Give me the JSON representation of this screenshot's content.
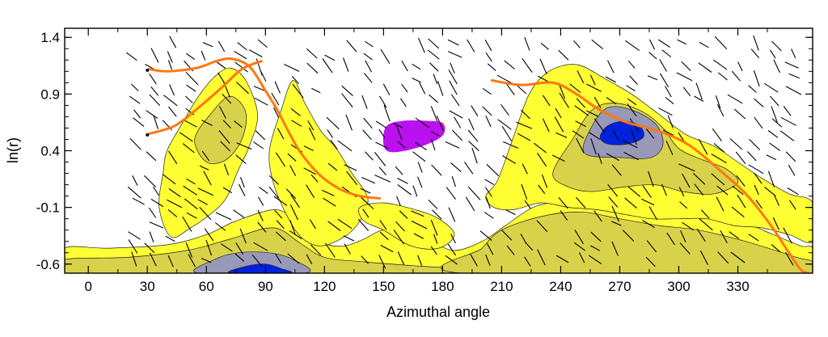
{
  "chart_data": {
    "type": "contour",
    "title": "",
    "xlabel": "Azimuthal angle",
    "ylabel": "ln(r)",
    "xlim": [
      -12,
      368
    ],
    "ylim": [
      -0.68,
      1.48
    ],
    "xticks": [
      0,
      30,
      60,
      90,
      120,
      150,
      180,
      210,
      240,
      270,
      300,
      330
    ],
    "xtick_labels": [
      "0",
      "30",
      "60",
      "90",
      "120",
      "150",
      "180",
      "210",
      "240",
      "270",
      "300",
      "330"
    ],
    "yticks": [
      1.4,
      0.9,
      0.4,
      -0.1,
      -0.6
    ],
    "ytick_labels": [
      "1.4",
      "0.9",
      "0.4",
      "-0.1",
      "-0.6"
    ],
    "grid": false,
    "legend": "none",
    "contour_levels": [
      {
        "name": "level-1",
        "color": "#ffff33"
      },
      {
        "name": "level-2",
        "color": "#d8d24a"
      },
      {
        "name": "level-3",
        "color": "#9898b8"
      },
      {
        "name": "level-4",
        "color": "#0022dd"
      }
    ],
    "contour_regions": [
      {
        "level": 1,
        "points": [
          [
            -12,
            -0.46
          ],
          [
            10,
            -0.46
          ],
          [
            40,
            -0.43
          ],
          [
            60,
            -0.34
          ],
          [
            75,
            -0.22
          ],
          [
            95,
            -0.12
          ],
          [
            105,
            -0.22
          ],
          [
            112,
            -0.32
          ],
          [
            120,
            -0.42
          ],
          [
            130,
            -0.44
          ],
          [
            140,
            -0.38
          ],
          [
            150,
            -0.3
          ],
          [
            162,
            -0.34
          ],
          [
            174,
            -0.4
          ],
          [
            186,
            -0.48
          ],
          [
            200,
            -0.4
          ],
          [
            212,
            -0.26
          ],
          [
            226,
            -0.1
          ],
          [
            240,
            -0.05
          ],
          [
            254,
            -0.08
          ],
          [
            268,
            -0.12
          ],
          [
            282,
            -0.18
          ],
          [
            296,
            -0.14
          ],
          [
            308,
            -0.12
          ],
          [
            320,
            -0.18
          ],
          [
            334,
            -0.24
          ],
          [
            348,
            -0.34
          ],
          [
            362,
            -0.44
          ],
          [
            368,
            -0.46
          ],
          [
            368,
            -0.68
          ],
          [
            -12,
            -0.68
          ]
        ]
      },
      {
        "level": 1,
        "points": [
          [
            40,
            0.4
          ],
          [
            48,
            0.65
          ],
          [
            56,
            0.88
          ],
          [
            64,
            1.05
          ],
          [
            72,
            1.13
          ],
          [
            80,
            1.02
          ],
          [
            86,
            0.72
          ],
          [
            82,
            0.45
          ],
          [
            76,
            0.22
          ],
          [
            70,
            -0.02
          ],
          [
            62,
            -0.16
          ],
          [
            52,
            -0.28
          ],
          [
            42,
            -0.36
          ],
          [
            36,
            -0.1
          ],
          [
            38,
            0.2
          ]
        ]
      },
      {
        "level": 1,
        "points": [
          [
            92,
            0.4
          ],
          [
            98,
            0.76
          ],
          [
            104,
            1.02
          ],
          [
            110,
            0.82
          ],
          [
            118,
            0.58
          ],
          [
            126,
            0.42
          ],
          [
            134,
            0.2
          ],
          [
            142,
            -0.02
          ],
          [
            138,
            -0.22
          ],
          [
            130,
            -0.36
          ],
          [
            118,
            -0.44
          ],
          [
            108,
            -0.36
          ],
          [
            100,
            -0.14
          ],
          [
            94,
            0.12
          ]
        ]
      },
      {
        "level": 1,
        "points": [
          [
            138,
            -0.1
          ],
          [
            150,
            -0.06
          ],
          [
            166,
            -0.12
          ],
          [
            178,
            -0.2
          ],
          [
            186,
            -0.34
          ],
          [
            178,
            -0.46
          ],
          [
            164,
            -0.44
          ],
          [
            150,
            -0.3
          ],
          [
            140,
            -0.22
          ]
        ]
      },
      {
        "level": 1,
        "points": [
          [
            208,
            0.14
          ],
          [
            216,
            0.52
          ],
          [
            224,
            0.9
          ],
          [
            234,
            1.1
          ],
          [
            248,
            1.16
          ],
          [
            262,
            1.04
          ],
          [
            276,
            0.9
          ],
          [
            290,
            0.72
          ],
          [
            304,
            0.54
          ],
          [
            318,
            0.44
          ],
          [
            330,
            0.3
          ],
          [
            342,
            0.16
          ],
          [
            356,
            0.02
          ],
          [
            368,
            -0.06
          ],
          [
            368,
            -0.4
          ],
          [
            356,
            -0.34
          ],
          [
            342,
            -0.28
          ],
          [
            328,
            -0.26
          ],
          [
            314,
            -0.2
          ],
          [
            300,
            -0.2
          ],
          [
            286,
            -0.2
          ],
          [
            272,
            -0.16
          ],
          [
            258,
            -0.12
          ],
          [
            244,
            -0.1
          ],
          [
            230,
            -0.06
          ],
          [
            216,
            -0.12
          ],
          [
            206,
            -0.1
          ],
          [
            202,
            0.0
          ]
        ]
      },
      {
        "level": 2,
        "points": [
          [
            -12,
            -0.56
          ],
          [
            20,
            -0.54
          ],
          [
            50,
            -0.48
          ],
          [
            72,
            -0.38
          ],
          [
            94,
            -0.28
          ],
          [
            108,
            -0.42
          ],
          [
            120,
            -0.54
          ],
          [
            140,
            -0.58
          ],
          [
            170,
            -0.62
          ],
          [
            190,
            -0.64
          ],
          [
            190,
            -0.68
          ],
          [
            -12,
            -0.68
          ]
        ]
      },
      {
        "level": 2,
        "points": [
          [
            210,
            -0.3
          ],
          [
            230,
            -0.18
          ],
          [
            250,
            -0.14
          ],
          [
            270,
            -0.2
          ],
          [
            290,
            -0.26
          ],
          [
            310,
            -0.3
          ],
          [
            334,
            -0.4
          ],
          [
            360,
            -0.54
          ],
          [
            368,
            -0.58
          ],
          [
            368,
            -0.68
          ],
          [
            190,
            -0.68
          ],
          [
            200,
            -0.46
          ]
        ]
      },
      {
        "level": 2,
        "points": [
          [
            236,
            0.2
          ],
          [
            246,
            0.5
          ],
          [
            256,
            0.76
          ],
          [
            268,
            0.82
          ],
          [
            282,
            0.74
          ],
          [
            292,
            0.6
          ],
          [
            300,
            0.42
          ],
          [
            312,
            0.32
          ],
          [
            324,
            0.24
          ],
          [
            330,
            0.12
          ],
          [
            318,
            0.02
          ],
          [
            302,
            0.04
          ],
          [
            288,
            0.1
          ],
          [
            272,
            0.08
          ],
          [
            256,
            0.04
          ],
          [
            244,
            0.08
          ]
        ]
      },
      {
        "level": 2,
        "points": [
          [
            54,
            0.5
          ],
          [
            62,
            0.72
          ],
          [
            72,
            0.88
          ],
          [
            80,
            0.74
          ],
          [
            78,
            0.5
          ],
          [
            70,
            0.32
          ],
          [
            60,
            0.3
          ]
        ]
      },
      {
        "level": 3,
        "points": [
          [
            56,
            -0.68
          ],
          [
            64,
            -0.56
          ],
          [
            76,
            -0.5
          ],
          [
            92,
            -0.5
          ],
          [
            104,
            -0.56
          ],
          [
            110,
            -0.68
          ]
        ]
      },
      {
        "level": 3,
        "points": [
          [
            252,
            0.38
          ],
          [
            256,
            0.62
          ],
          [
            264,
            0.78
          ],
          [
            276,
            0.76
          ],
          [
            288,
            0.64
          ],
          [
            292,
            0.46
          ],
          [
            286,
            0.34
          ],
          [
            270,
            0.34
          ]
        ]
      },
      {
        "level": 4,
        "points": [
          [
            72,
            -0.68
          ],
          [
            80,
            -0.62
          ],
          [
            90,
            -0.6
          ],
          [
            98,
            -0.64
          ],
          [
            102,
            -0.68
          ]
        ]
      },
      {
        "level": 4,
        "points": [
          [
            260,
            0.52
          ],
          [
            264,
            0.62
          ],
          [
            272,
            0.66
          ],
          [
            280,
            0.62
          ],
          [
            282,
            0.52
          ],
          [
            274,
            0.46
          ],
          [
            264,
            0.46
          ]
        ]
      }
    ],
    "purple_blob": {
      "color": "#bb11ee",
      "points": [
        [
          150,
          0.5
        ],
        [
          152,
          0.62
        ],
        [
          160,
          0.66
        ],
        [
          172,
          0.66
        ],
        [
          180,
          0.64
        ],
        [
          180,
          0.54
        ],
        [
          172,
          0.46
        ],
        [
          160,
          0.4
        ],
        [
          152,
          0.4
        ]
      ]
    },
    "series": [
      {
        "color": "#ff7711",
        "points": [
          [
            31,
            1.12
          ],
          [
            40,
            1.1
          ],
          [
            55,
            1.13
          ],
          [
            65,
            1.19
          ],
          [
            73,
            1.21
          ],
          [
            82,
            1.14
          ],
          [
            90,
            0.93
          ],
          [
            96,
            0.76
          ],
          [
            102,
            0.56
          ],
          [
            108,
            0.38
          ],
          [
            118,
            0.18
          ],
          [
            128,
            0.06
          ],
          [
            138,
            0.0
          ],
          [
            148,
            -0.02
          ]
        ]
      },
      {
        "color": "#ff7711",
        "points": [
          [
            31,
            0.55
          ],
          [
            44,
            0.62
          ],
          [
            56,
            0.78
          ],
          [
            68,
            0.96
          ],
          [
            78,
            1.12
          ],
          [
            88,
            1.19
          ]
        ]
      },
      {
        "color": "#ff7711",
        "points": [
          [
            205,
            1.02
          ],
          [
            220,
            0.98
          ],
          [
            236,
            1.0
          ],
          [
            248,
            0.9
          ],
          [
            258,
            0.78
          ],
          [
            272,
            0.66
          ],
          [
            292,
            0.56
          ],
          [
            306,
            0.44
          ],
          [
            320,
            0.24
          ],
          [
            334,
            0.02
          ],
          [
            346,
            -0.24
          ],
          [
            356,
            -0.5
          ],
          [
            362,
            -0.65
          ],
          [
            366,
            -0.68
          ]
        ]
      }
    ],
    "series_start_markers": [
      [
        30,
        1.11
      ],
      [
        30,
        0.54
      ]
    ]
  }
}
